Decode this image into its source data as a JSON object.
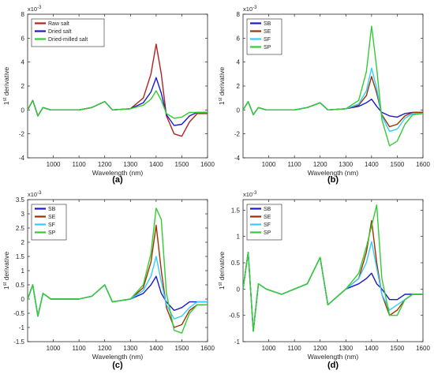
{
  "figure": {
    "panels": [
      {
        "id": "a",
        "caption": "(a)",
        "xlabel": "Wavelength (nm)",
        "ylabel": "1st derivative",
        "exponent": "x10^-3",
        "yticks": [
          "-4",
          "-2",
          "0",
          "2",
          "4",
          "6",
          "8"
        ],
        "xticks": [
          "1000",
          "1100",
          "1200",
          "1300",
          "1400",
          "1500",
          "1600"
        ]
      },
      {
        "id": "b",
        "caption": "(b)",
        "xlabel": "Wavelength (nm)",
        "ylabel": "1st derivative",
        "exponent": "x10^-3",
        "yticks": [
          "-4",
          "-2",
          "0",
          "2",
          "4",
          "6",
          "8"
        ],
        "xticks": [
          "1000",
          "1100",
          "1200",
          "1300",
          "1400",
          "1500",
          "1600"
        ]
      },
      {
        "id": "c",
        "caption": "(c)",
        "xlabel": "Wavelength (nm)",
        "ylabel": "1st derivative",
        "exponent": "x10^-3",
        "yticks": [
          "-1.5",
          "-1",
          "-0.5",
          "0",
          "0.5",
          "1",
          "1.5",
          "2",
          "2.5",
          "3",
          "3.5"
        ],
        "xticks": [
          "1000",
          "1100",
          "1200",
          "1300",
          "1400",
          "1500",
          "1600"
        ]
      },
      {
        "id": "d",
        "caption": "(d)",
        "xlabel": "Wavelength (nm)",
        "ylabel": "1st derivative",
        "exponent": "x10^-3",
        "yticks": [
          "-1",
          "-0.5",
          "0",
          "0.5",
          "1",
          "1.5"
        ],
        "xticks": [
          "1000",
          "1100",
          "1200",
          "1300",
          "1400",
          "1500",
          "1600"
        ]
      }
    ]
  },
  "chart_data": [
    {
      "type": "line",
      "panel": "a",
      "xlabel": "Wavelength (nm)",
      "ylabel": "1st derivative",
      "y_scale_note": "x10^-3",
      "xlim": [
        900,
        1600
      ],
      "ylim": [
        -4,
        8
      ],
      "legend_position": "top-left",
      "legend": [
        "Raw salt",
        "Dried salt",
        "Dried-milled salt"
      ],
      "series": [
        {
          "name": "Raw salt",
          "color": "#b22222",
          "x": [
            900,
            920,
            940,
            960,
            990,
            1050,
            1100,
            1150,
            1200,
            1230,
            1300,
            1350,
            1380,
            1400,
            1420,
            1440,
            1470,
            1500,
            1530,
            1560,
            1600
          ],
          "y": [
            0,
            0.8,
            -0.5,
            0.2,
            0,
            0,
            0,
            0.2,
            0.7,
            0,
            0.1,
            1.0,
            3.0,
            5.5,
            3.0,
            -0.5,
            -2.0,
            -2.2,
            -1.0,
            -0.3,
            -0.3
          ]
        },
        {
          "name": "Dried salt",
          "color": "#1a1acc",
          "x": [
            900,
            920,
            940,
            960,
            990,
            1050,
            1100,
            1150,
            1200,
            1230,
            1300,
            1350,
            1380,
            1400,
            1420,
            1440,
            1470,
            1500,
            1530,
            1560,
            1600
          ],
          "y": [
            0,
            0.8,
            -0.5,
            0.2,
            0,
            0,
            0,
            0.2,
            0.7,
            0,
            0.1,
            0.6,
            1.5,
            2.7,
            1.4,
            -0.4,
            -1.3,
            -1.2,
            -0.5,
            -0.2,
            -0.2
          ]
        },
        {
          "name": "Dried-milled salt",
          "color": "#33cc33",
          "x": [
            900,
            920,
            940,
            960,
            990,
            1050,
            1100,
            1150,
            1200,
            1230,
            1300,
            1350,
            1380,
            1400,
            1420,
            1440,
            1470,
            1500,
            1530,
            1560,
            1600
          ],
          "y": [
            0,
            0.8,
            -0.5,
            0.2,
            0,
            0,
            0,
            0.2,
            0.7,
            0,
            0.1,
            0.4,
            0.9,
            1.6,
            0.8,
            -0.3,
            -0.7,
            -0.6,
            -0.2,
            -0.2,
            -0.2
          ]
        }
      ]
    },
    {
      "type": "line",
      "panel": "b",
      "xlabel": "Wavelength (nm)",
      "ylabel": "1st derivative",
      "y_scale_note": "x10^-3",
      "xlim": [
        900,
        1600
      ],
      "ylim": [
        -4,
        8
      ],
      "legend_position": "top-left",
      "legend": [
        "SB",
        "SE",
        "SF",
        "SP"
      ],
      "series": [
        {
          "name": "SB",
          "color": "#1a1acc",
          "x": [
            900,
            920,
            940,
            960,
            990,
            1050,
            1100,
            1150,
            1200,
            1230,
            1300,
            1350,
            1380,
            1400,
            1420,
            1440,
            1470,
            1500,
            1530,
            1560,
            1600
          ],
          "y": [
            0,
            0.7,
            -0.4,
            0.2,
            0,
            0,
            0,
            0.2,
            0.6,
            0,
            0.1,
            0.3,
            0.6,
            0.9,
            0.3,
            -0.2,
            -0.5,
            -0.6,
            -0.3,
            -0.2,
            -0.2
          ]
        },
        {
          "name": "SE",
          "color": "#993300",
          "x": [
            900,
            920,
            940,
            960,
            990,
            1050,
            1100,
            1150,
            1200,
            1230,
            1300,
            1350,
            1380,
            1400,
            1420,
            1440,
            1470,
            1500,
            1530,
            1560,
            1600
          ],
          "y": [
            0,
            0.7,
            -0.4,
            0.2,
            0,
            0,
            0,
            0.2,
            0.6,
            0,
            0.1,
            0.4,
            1.2,
            2.8,
            1.4,
            -0.4,
            -1.4,
            -1.2,
            -0.5,
            -0.2,
            -0.2
          ]
        },
        {
          "name": "SF",
          "color": "#33ccff",
          "x": [
            900,
            920,
            940,
            960,
            990,
            1050,
            1100,
            1150,
            1200,
            1230,
            1300,
            1350,
            1380,
            1400,
            1420,
            1440,
            1470,
            1500,
            1530,
            1560,
            1600
          ],
          "y": [
            0,
            0.7,
            -0.4,
            0.2,
            0,
            0,
            0,
            0.2,
            0.6,
            0,
            0.1,
            0.5,
            1.6,
            3.5,
            1.8,
            -0.5,
            -1.8,
            -1.6,
            -0.7,
            -0.3,
            -0.3
          ]
        },
        {
          "name": "SP",
          "color": "#33cc33",
          "x": [
            900,
            920,
            940,
            960,
            990,
            1050,
            1100,
            1150,
            1200,
            1230,
            1300,
            1350,
            1380,
            1400,
            1420,
            1440,
            1470,
            1500,
            1530,
            1560,
            1600
          ],
          "y": [
            0,
            0.7,
            -0.4,
            0.2,
            0,
            0,
            0,
            0.2,
            0.6,
            0,
            0.1,
            0.8,
            3.2,
            7.0,
            3.5,
            -0.8,
            -3.0,
            -2.6,
            -1.2,
            -0.4,
            -0.3
          ]
        }
      ]
    },
    {
      "type": "line",
      "panel": "c",
      "xlabel": "Wavelength (nm)",
      "ylabel": "1st derivative",
      "y_scale_note": "x10^-3",
      "xlim": [
        900,
        1600
      ],
      "ylim": [
        -1.5,
        3.5
      ],
      "legend_position": "top-left",
      "legend": [
        "SB",
        "SE",
        "SF",
        "SP"
      ],
      "series": [
        {
          "name": "SB",
          "color": "#1a1acc",
          "x": [
            900,
            920,
            940,
            960,
            990,
            1050,
            1100,
            1150,
            1200,
            1230,
            1300,
            1350,
            1380,
            1400,
            1420,
            1440,
            1470,
            1500,
            1530,
            1560,
            1600
          ],
          "y": [
            0,
            0.5,
            -0.6,
            0.2,
            0,
            0,
            0,
            0.1,
            0.5,
            -0.1,
            0,
            0.2,
            0.5,
            0.8,
            0.2,
            -0.1,
            -0.4,
            -0.3,
            -0.1,
            -0.1,
            -0.1
          ]
        },
        {
          "name": "SE",
          "color": "#993300",
          "x": [
            900,
            920,
            940,
            960,
            990,
            1050,
            1100,
            1150,
            1200,
            1230,
            1300,
            1350,
            1380,
            1400,
            1420,
            1440,
            1470,
            1500,
            1530,
            1560,
            1600
          ],
          "y": [
            0,
            0.5,
            -0.6,
            0.2,
            0,
            0,
            0,
            0.1,
            0.5,
            -0.1,
            0,
            0.4,
            1.3,
            2.6,
            1.0,
            -0.3,
            -1.0,
            -0.9,
            -0.4,
            -0.2,
            -0.2
          ]
        },
        {
          "name": "SF",
          "color": "#33ccff",
          "x": [
            900,
            920,
            940,
            960,
            990,
            1050,
            1100,
            1150,
            1200,
            1230,
            1300,
            1350,
            1380,
            1400,
            1420,
            1440,
            1470,
            1500,
            1530,
            1560,
            1600
          ],
          "y": [
            0,
            0.5,
            -0.6,
            0.2,
            0,
            0,
            0,
            0.1,
            0.5,
            -0.1,
            0,
            0.3,
            0.8,
            1.5,
            0.6,
            -0.2,
            -0.7,
            -0.6,
            -0.3,
            -0.1,
            -0.1
          ]
        },
        {
          "name": "SP",
          "color": "#33cc33",
          "x": [
            900,
            920,
            940,
            960,
            990,
            1050,
            1100,
            1150,
            1200,
            1230,
            1300,
            1350,
            1380,
            1400,
            1420,
            1440,
            1470,
            1500,
            1530,
            1560,
            1600
          ],
          "y": [
            0,
            0.5,
            -0.6,
            0.2,
            0,
            0,
            0,
            0.1,
            0.5,
            -0.1,
            0,
            0.5,
            1.6,
            3.2,
            2.8,
            0.2,
            -1.1,
            -1.2,
            -0.5,
            -0.2,
            -0.2
          ]
        }
      ]
    },
    {
      "type": "line",
      "panel": "d",
      "xlabel": "Wavelength (nm)",
      "ylabel": "1st derivative",
      "y_scale_note": "x10^-3",
      "xlim": [
        900,
        1600
      ],
      "ylim": [
        -1,
        1.7
      ],
      "legend_position": "top-left",
      "legend": [
        "SB",
        "SE",
        "SF",
        "SP"
      ],
      "series": [
        {
          "name": "SB",
          "color": "#1a1acc",
          "x": [
            900,
            920,
            940,
            960,
            990,
            1050,
            1100,
            1150,
            1200,
            1230,
            1300,
            1350,
            1380,
            1400,
            1420,
            1440,
            1470,
            1500,
            1530,
            1560,
            1600
          ],
          "y": [
            0,
            0.7,
            -0.8,
            0.1,
            0,
            -0.1,
            0,
            0.1,
            0.6,
            -0.3,
            0,
            0.1,
            0.2,
            0.3,
            0.1,
            0,
            -0.2,
            -0.2,
            -0.1,
            -0.1,
            -0.1
          ]
        },
        {
          "name": "SE",
          "color": "#993300",
          "x": [
            900,
            920,
            940,
            960,
            990,
            1050,
            1100,
            1150,
            1200,
            1230,
            1300,
            1350,
            1380,
            1400,
            1420,
            1440,
            1470,
            1500,
            1530,
            1560,
            1600
          ],
          "y": [
            0,
            0.7,
            -0.8,
            0.1,
            0,
            -0.1,
            0,
            0.1,
            0.6,
            -0.3,
            0,
            0.2,
            0.7,
            1.3,
            0.5,
            -0.1,
            -0.5,
            -0.4,
            -0.2,
            -0.1,
            -0.1
          ]
        },
        {
          "name": "SF",
          "color": "#33ccff",
          "x": [
            900,
            920,
            940,
            960,
            990,
            1050,
            1100,
            1150,
            1200,
            1230,
            1300,
            1350,
            1380,
            1400,
            1420,
            1440,
            1470,
            1500,
            1530,
            1560,
            1600
          ],
          "y": [
            0,
            0.7,
            -0.8,
            0.1,
            0,
            -0.1,
            0,
            0.1,
            0.6,
            -0.3,
            0,
            0.2,
            0.5,
            0.9,
            0.4,
            -0.1,
            -0.4,
            -0.3,
            -0.2,
            -0.1,
            -0.1
          ]
        },
        {
          "name": "SP",
          "color": "#33cc33",
          "x": [
            900,
            920,
            940,
            960,
            990,
            1050,
            1100,
            1150,
            1200,
            1230,
            1300,
            1350,
            1380,
            1400,
            1420,
            1440,
            1470,
            1500,
            1530,
            1560,
            1600
          ],
          "y": [
            0,
            0.7,
            -0.8,
            0.1,
            0,
            -0.1,
            0,
            0.1,
            0.6,
            -0.3,
            0,
            0.3,
            0.8,
            1.2,
            1.6,
            0.2,
            -0.5,
            -0.5,
            -0.2,
            -0.1,
            -0.1
          ]
        }
      ]
    }
  ]
}
